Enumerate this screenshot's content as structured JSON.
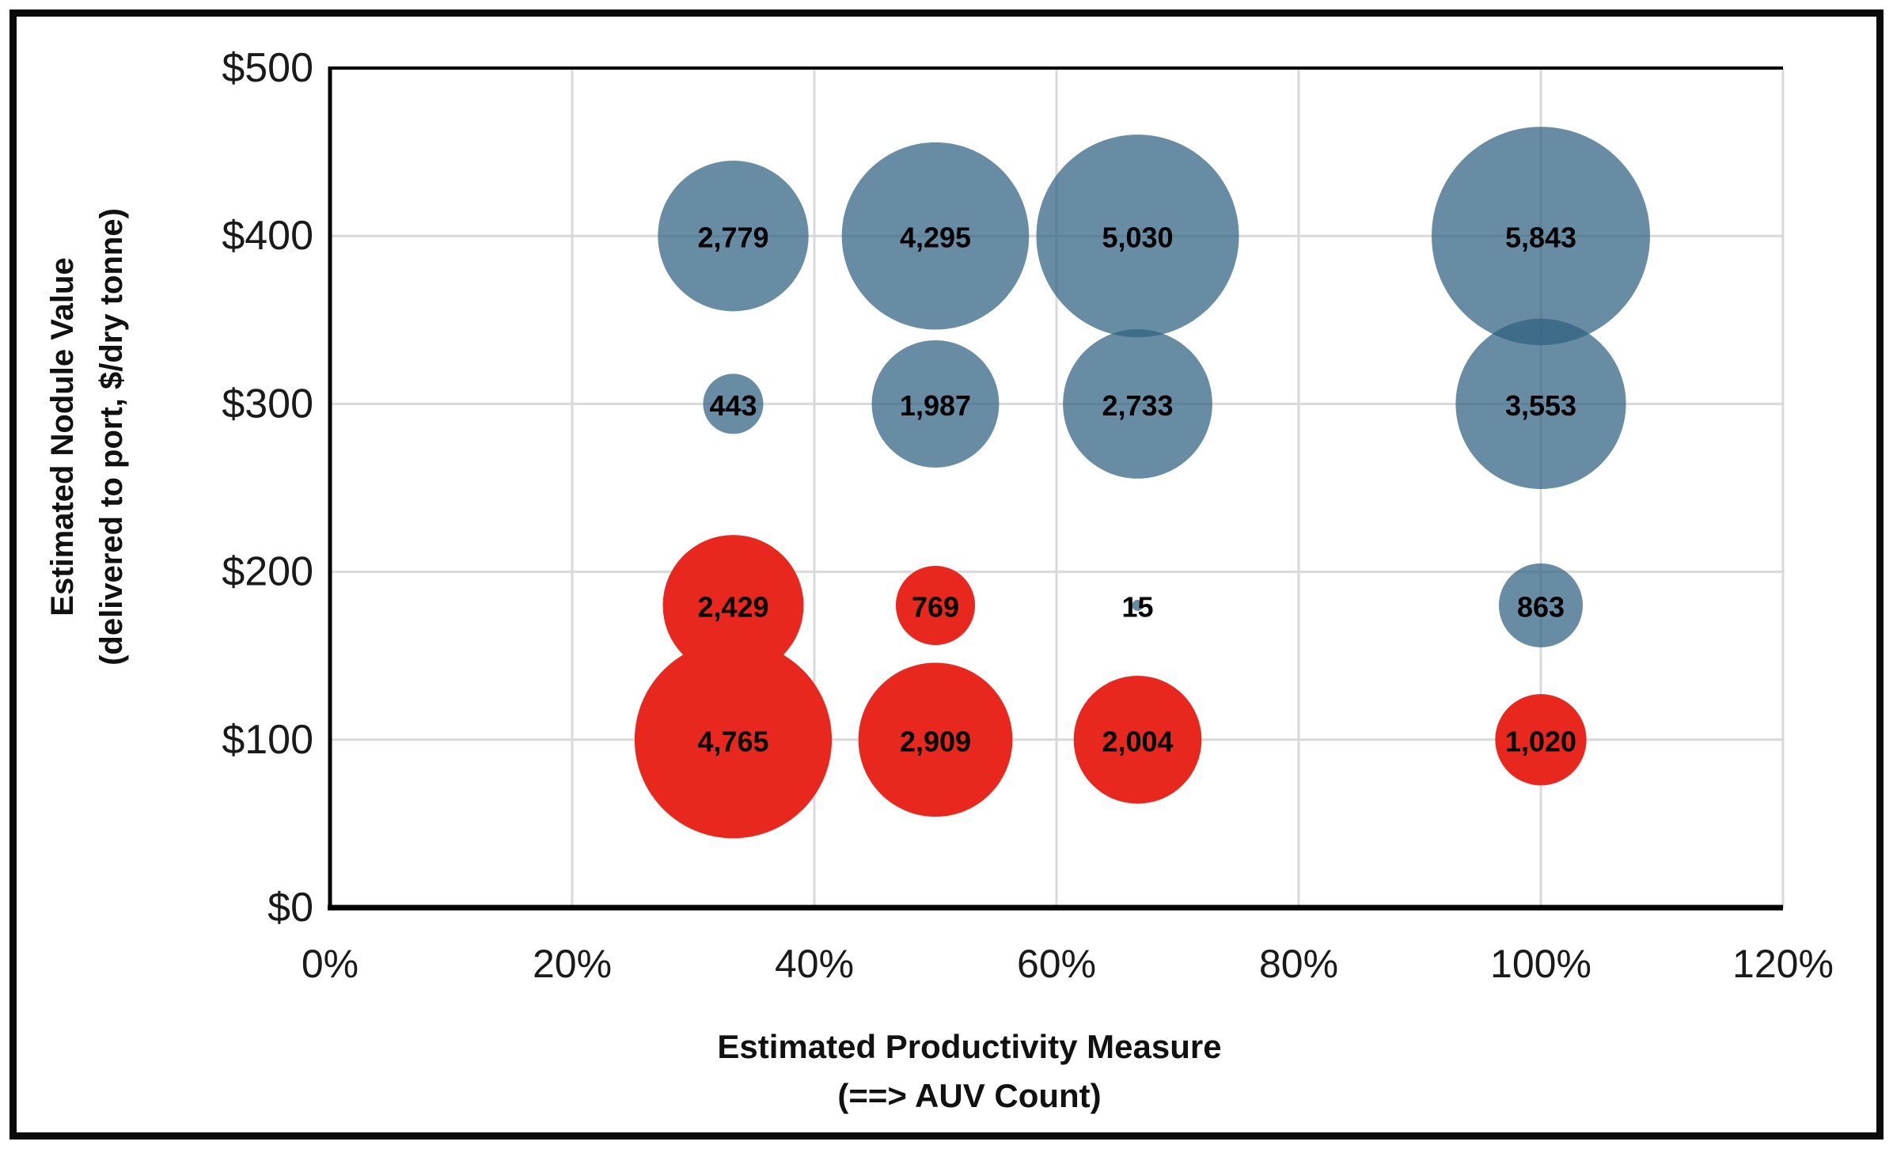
{
  "chart_data": {
    "type": "bubble",
    "title": "",
    "xlabel": "Estimated Productivity Measure",
    "ylabel": "Estimated Nodule Value",
    "grid": true,
    "colors": {
      "positive_bubble_base": "#2E5F7F",
      "positive_bubble_rendered": "#5B87A1",
      "negative_bubble": "#E8281E",
      "gridline": "#D9D9D9",
      "axis_line": "#000000",
      "label_text": "#000000"
    },
    "x_axis": {
      "title_line1": "Estimated Productivity Measure",
      "title_line2": "(==> AUV Count)",
      "min": 0,
      "max": 120,
      "ticks": [
        {
          "label": "0%",
          "value": 0
        },
        {
          "label": "20%",
          "value": 20
        },
        {
          "label": "40%",
          "value": 40
        },
        {
          "label": "60%",
          "value": 60
        },
        {
          "label": "80%",
          "value": 80
        },
        {
          "label": "100%",
          "value": 100
        },
        {
          "label": "120%",
          "value": 120
        }
      ]
    },
    "y_axis": {
      "title_line1": "Estimated Nodule Value",
      "title_line2": "(delivered to port, $/dry tonne)",
      "min": 0,
      "max": 500,
      "ticks": [
        {
          "label": "$0",
          "value": 0
        },
        {
          "label": "$100",
          "value": 100
        },
        {
          "label": "$200",
          "value": 200
        },
        {
          "label": "$300",
          "value": 300
        },
        {
          "label": "$400",
          "value": 400
        },
        {
          "label": "$500",
          "value": 500
        }
      ]
    },
    "size_note": "bubble area proportional to value",
    "series": [
      {
        "name": "series-blue",
        "color": "#2E5F7F",
        "fill_opacity": 0.72,
        "points": [
          {
            "x": 33.3,
            "y": 400,
            "value": 2779,
            "label": "2,779"
          },
          {
            "x": 50,
            "y": 400,
            "value": 4295,
            "label": "4,295"
          },
          {
            "x": 66.7,
            "y": 400,
            "value": 5030,
            "label": "5,030"
          },
          {
            "x": 100,
            "y": 400,
            "value": 5843,
            "label": "5,843"
          },
          {
            "x": 33.3,
            "y": 300,
            "value": 443,
            "label": "443"
          },
          {
            "x": 50,
            "y": 300,
            "value": 1987,
            "label": "1,987"
          },
          {
            "x": 66.7,
            "y": 300,
            "value": 2733,
            "label": "2,733"
          },
          {
            "x": 100,
            "y": 300,
            "value": 3553,
            "label": "3,553"
          },
          {
            "x": 66.7,
            "y": 180,
            "value": 15,
            "label": "15"
          },
          {
            "x": 100,
            "y": 180,
            "value": 863,
            "label": "863"
          }
        ]
      },
      {
        "name": "series-red",
        "color": "#E8281E",
        "fill_opacity": 1,
        "points": [
          {
            "x": 33.3,
            "y": 180,
            "value": 2429,
            "label": "2,429"
          },
          {
            "x": 50,
            "y": 180,
            "value": 769,
            "label": "769"
          },
          {
            "x": 33.3,
            "y": 100,
            "value": 4765,
            "label": "4,765"
          },
          {
            "x": 50,
            "y": 100,
            "value": 2909,
            "label": "2,909"
          },
          {
            "x": 66.7,
            "y": 100,
            "value": 2004,
            "label": "2,004"
          },
          {
            "x": 100,
            "y": 100,
            "value": 1020,
            "label": "1,020"
          }
        ]
      }
    ]
  }
}
